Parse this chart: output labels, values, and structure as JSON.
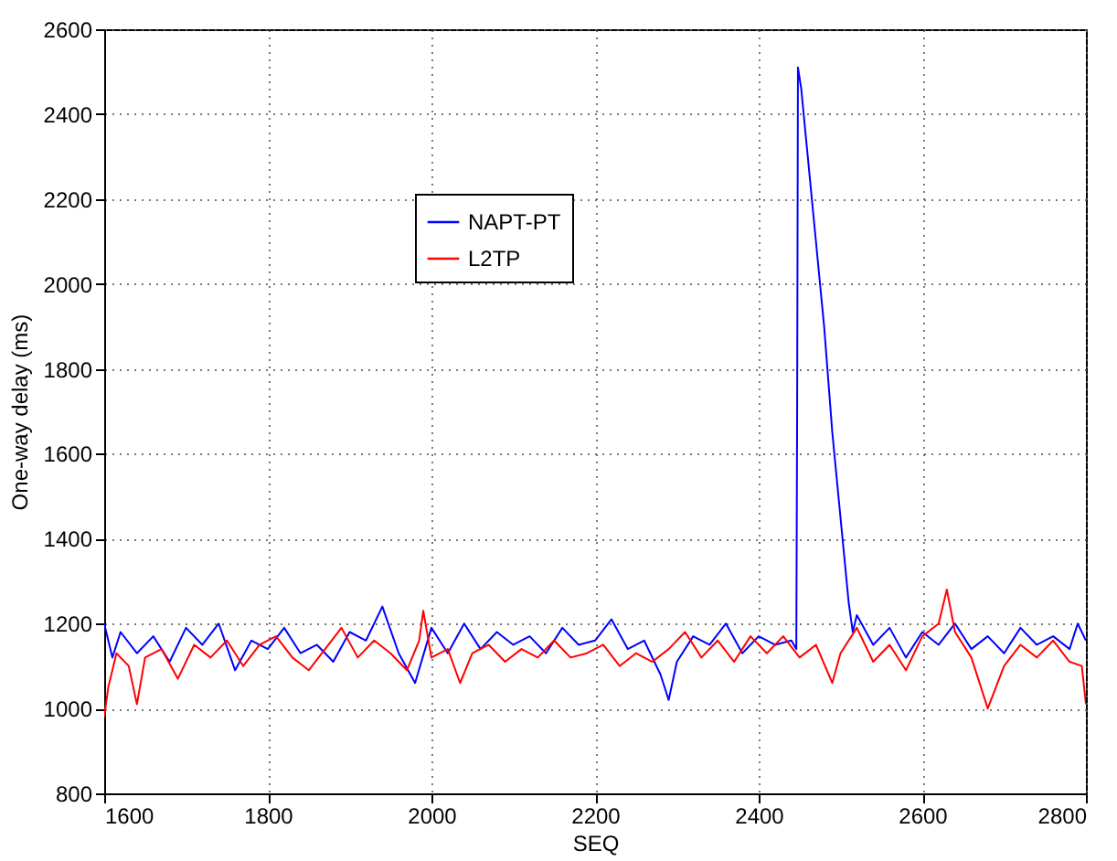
{
  "chart_data": {
    "type": "line",
    "xlabel": "SEQ",
    "ylabel": "One-way delay (ms)",
    "xlim": [
      1600,
      2800
    ],
    "xticks": [
      1600,
      1800,
      2000,
      2200,
      2400,
      2600,
      2800
    ],
    "ylim": [
      800,
      2600
    ],
    "yticks": [
      800,
      1000,
      1200,
      1400,
      1600,
      1800,
      2000,
      2200,
      2400,
      2600
    ],
    "grid": true,
    "legend": "top left",
    "marker": "none",
    "line_style": "solid",
    "series": [
      {
        "name": "NAPT-PT",
        "color": "#0000ff",
        "x": [
          1600,
          1610,
          1620,
          1640,
          1660,
          1680,
          1700,
          1720,
          1740,
          1760,
          1780,
          1800,
          1820,
          1840,
          1860,
          1880,
          1900,
          1920,
          1940,
          1960,
          1980,
          2000,
          2020,
          2040,
          2060,
          2080,
          2100,
          2120,
          2140,
          2160,
          2180,
          2200,
          2220,
          2240,
          2260,
          2280,
          2290,
          2300,
          2320,
          2340,
          2360,
          2380,
          2400,
          2420,
          2440,
          2446,
          2447,
          2448,
          2452,
          2460,
          2470,
          2480,
          2490,
          2500,
          2510,
          2515,
          2520,
          2540,
          2560,
          2580,
          2600,
          2620,
          2640,
          2660,
          2680,
          2700,
          2720,
          2740,
          2760,
          2780,
          2790,
          2800
        ],
        "values": [
          1200,
          1120,
          1180,
          1130,
          1170,
          1110,
          1190,
          1150,
          1200,
          1090,
          1160,
          1140,
          1190,
          1130,
          1150,
          1110,
          1180,
          1160,
          1240,
          1130,
          1060,
          1190,
          1130,
          1200,
          1140,
          1180,
          1150,
          1170,
          1130,
          1190,
          1150,
          1160,
          1210,
          1140,
          1160,
          1080,
          1020,
          1110,
          1170,
          1150,
          1200,
          1130,
          1170,
          1150,
          1160,
          1140,
          1700,
          2510,
          2460,
          2300,
          2100,
          1900,
          1650,
          1450,
          1250,
          1180,
          1220,
          1150,
          1190,
          1120,
          1180,
          1150,
          1200,
          1140,
          1170,
          1130,
          1190,
          1150,
          1170,
          1140,
          1200,
          1160
        ]
      },
      {
        "name": "L2TP",
        "color": "#ff0000",
        "x": [
          1600,
          1605,
          1615,
          1630,
          1640,
          1650,
          1670,
          1690,
          1710,
          1730,
          1750,
          1770,
          1790,
          1810,
          1830,
          1850,
          1870,
          1890,
          1910,
          1930,
          1950,
          1970,
          1985,
          1990,
          2000,
          2020,
          2035,
          2050,
          2070,
          2090,
          2110,
          2130,
          2150,
          2170,
          2190,
          2210,
          2230,
          2250,
          2270,
          2290,
          2310,
          2330,
          2350,
          2370,
          2390,
          2410,
          2430,
          2450,
          2470,
          2490,
          2500,
          2520,
          2540,
          2560,
          2580,
          2600,
          2620,
          2630,
          2640,
          2660,
          2680,
          2700,
          2720,
          2740,
          2760,
          2780,
          2795,
          2800
        ],
        "values": [
          980,
          1050,
          1130,
          1100,
          1010,
          1120,
          1140,
          1070,
          1150,
          1120,
          1160,
          1100,
          1150,
          1170,
          1120,
          1090,
          1140,
          1190,
          1120,
          1160,
          1130,
          1090,
          1160,
          1230,
          1120,
          1140,
          1060,
          1130,
          1150,
          1110,
          1140,
          1120,
          1160,
          1120,
          1130,
          1150,
          1100,
          1130,
          1110,
          1140,
          1180,
          1120,
          1160,
          1110,
          1170,
          1130,
          1170,
          1120,
          1150,
          1060,
          1130,
          1190,
          1110,
          1150,
          1090,
          1170,
          1200,
          1280,
          1180,
          1120,
          1000,
          1100,
          1150,
          1120,
          1160,
          1110,
          1100,
          1010
        ]
      }
    ]
  }
}
